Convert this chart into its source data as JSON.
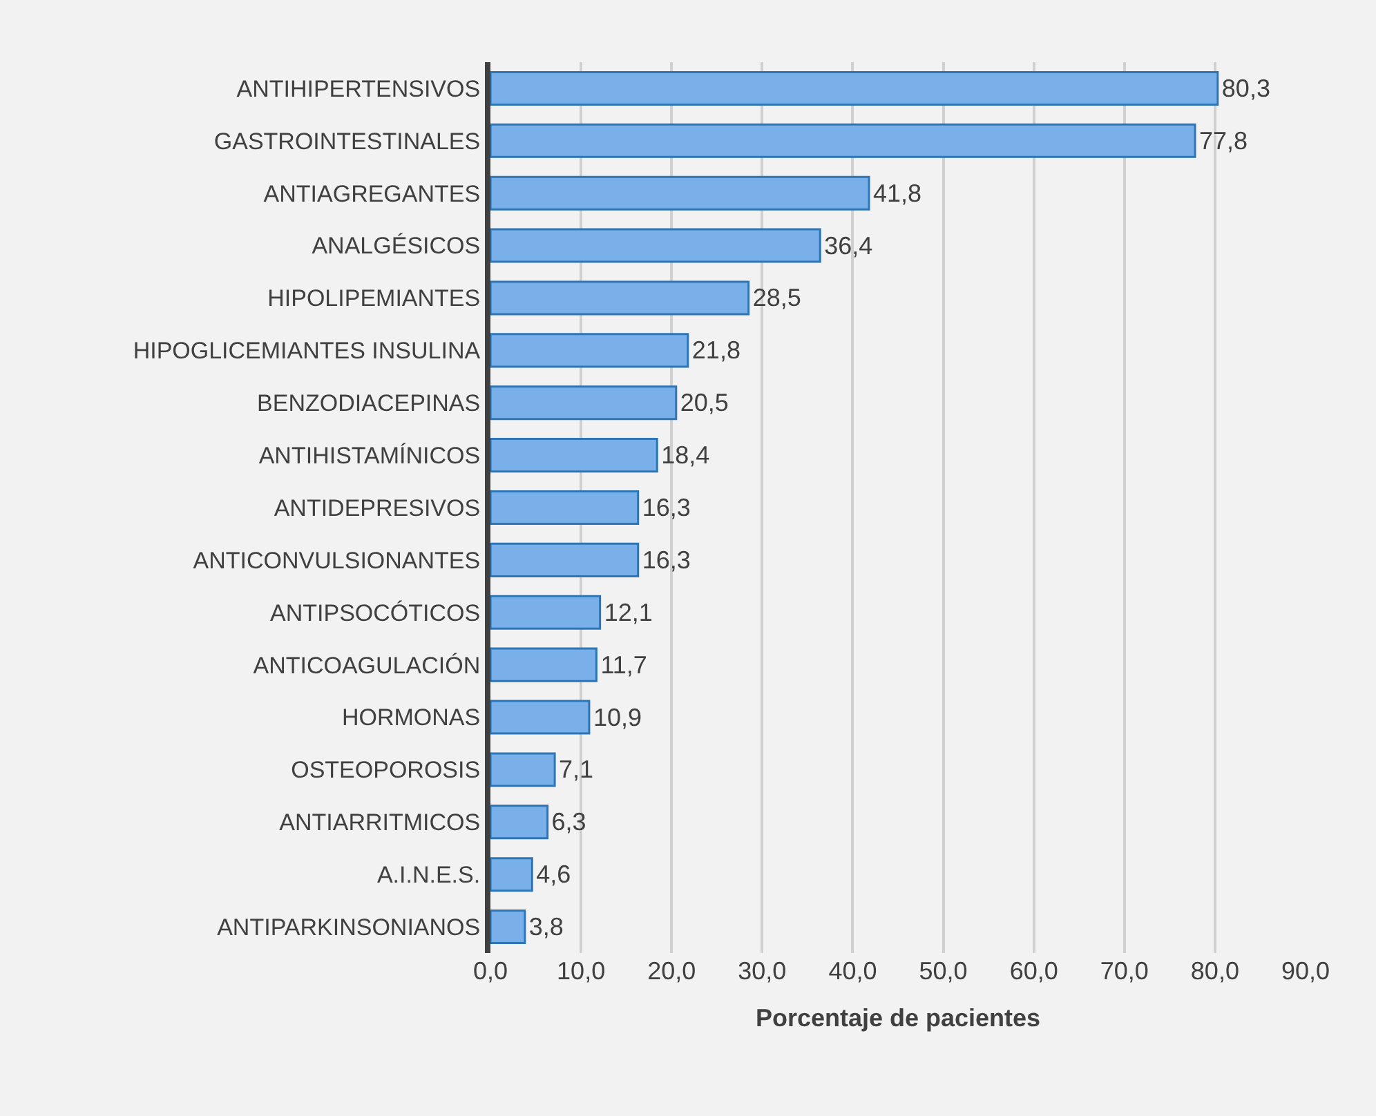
{
  "chart_data": {
    "type": "bar",
    "orientation": "horizontal",
    "categories": [
      "ANTIHIPERTENSIVOS",
      "GASTROINTESTINALES",
      "ANTIAGREGANTES",
      "ANALGÉSICOS",
      "HIPOLIPEMIANTES",
      "HIPOGLICEMIANTES INSULINA",
      "BENZODIACEPINAS",
      "ANTIHISTAMÍNICOS",
      "ANTIDEPRESIVOS",
      "ANTICONVULSIONANTES",
      "ANTIPSOCÓTICOS",
      "ANTICOAGULACIÓN",
      "HORMONAS",
      "OSTEOPOROSIS",
      "ANTIARRITMICOS",
      "A.I.N.E.S.",
      "ANTIPARKINSONIANOS"
    ],
    "values": [
      80.3,
      77.8,
      41.8,
      36.4,
      28.5,
      21.8,
      20.5,
      18.4,
      16.3,
      16.3,
      12.1,
      11.7,
      10.9,
      7.1,
      6.3,
      4.6,
      3.8
    ],
    "value_labels": [
      "80,3",
      "77,8",
      "41,8",
      "36,4",
      "28,5",
      "21,8",
      "20,5",
      "18,4",
      "16,3",
      "16,3",
      "12,1",
      "11,7",
      "10,9",
      "7,1",
      "6,3",
      "4,6",
      "3,8"
    ],
    "color": "#79b0ea",
    "xlabel": "Porcentaje de pacientes",
    "xlim": [
      0,
      90
    ],
    "xticks": [
      {
        "value": 0,
        "label": "0,0"
      },
      {
        "value": 10,
        "label": "10,0"
      },
      {
        "value": 20,
        "label": "20,0"
      },
      {
        "value": 30,
        "label": "30,0"
      },
      {
        "value": 40,
        "label": "40,0"
      },
      {
        "value": 50,
        "label": "50,0"
      },
      {
        "value": 60,
        "label": "60,0"
      },
      {
        "value": 70,
        "label": "70,0"
      },
      {
        "value": 80,
        "label": "80,0"
      },
      {
        "value": 90,
        "label": "90,0"
      }
    ],
    "grid": "x"
  }
}
